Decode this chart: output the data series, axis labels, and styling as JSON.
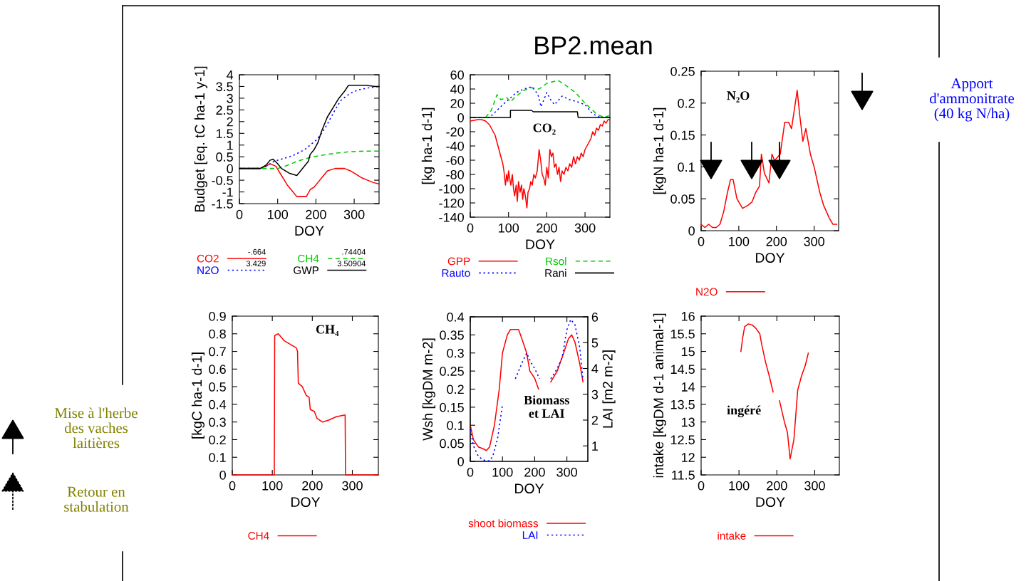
{
  "chart_data": [
    {
      "type": "line",
      "xlabel": "DOY",
      "ylabel": "Budget [eq. tC ha-1 y-1]",
      "xlim": [
        0,
        365
      ],
      "xticks": [
        0,
        100,
        200,
        300
      ],
      "ylim": [
        -1.5,
        4
      ],
      "yticks": [
        -1.5,
        -1,
        -0.5,
        0,
        0.5,
        1,
        1.5,
        2,
        2.5,
        3,
        3.5,
        4
      ],
      "legend": "bottom",
      "series": [
        {
          "name": "CO2",
          "color": "#ff0000",
          "line_style": "solid",
          "x": [
            0,
            30,
            55,
            70,
            80,
            95,
            110,
            125,
            140,
            150,
            160,
            175,
            185,
            195,
            205,
            215,
            230,
            250,
            275,
            290,
            300,
            320,
            335,
            350,
            365
          ],
          "values": [
            0,
            0,
            0,
            0.1,
            0.2,
            0.1,
            -0.3,
            -0.7,
            -1,
            -1.2,
            -1.2,
            -1.2,
            -0.9,
            -0.8,
            -0.6,
            -0.4,
            -0.1,
            0,
            0,
            -0.1,
            -0.2,
            -0.4,
            -0.5,
            -0.6,
            -0.66
          ]
        },
        {
          "name": "N2O",
          "color": "#0000ff",
          "line_style": "dotted",
          "x": [
            0,
            30,
            50,
            70,
            90,
            110,
            140,
            170,
            200,
            215,
            230,
            250,
            265,
            280,
            295,
            310,
            325,
            340,
            355,
            365
          ],
          "values": [
            0,
            0,
            0,
            0.1,
            0.3,
            0.4,
            0.55,
            0.8,
            1.2,
            1.5,
            1.9,
            2.5,
            2.9,
            3.1,
            3.25,
            3.35,
            3.4,
            3.45,
            3.48,
            3.5
          ]
        },
        {
          "name": "CH4",
          "color": "#00cc00",
          "line_style": "dashed",
          "x": [
            0,
            50,
            100,
            120,
            150,
            180,
            210,
            250,
            290,
            330,
            365
          ],
          "values": [
            0,
            0,
            0,
            0.1,
            0.3,
            0.45,
            0.55,
            0.65,
            0.72,
            0.74,
            0.74
          ]
        },
        {
          "name": "GWP",
          "color": "#000000",
          "line_style": "solid",
          "x": [
            0,
            55,
            70,
            80,
            88,
            100,
            110,
            130,
            150,
            160,
            170,
            180,
            185,
            195,
            205,
            215,
            230,
            245,
            260,
            275,
            285,
            300,
            330,
            355,
            365
          ],
          "values": [
            0,
            0,
            0.15,
            0.35,
            0.4,
            0.2,
            0,
            -0.2,
            -0.3,
            -0.1,
            0.1,
            0.3,
            0.6,
            0.8,
            1.1,
            1.6,
            2.2,
            2.6,
            3,
            3.3,
            3.55,
            3.55,
            3.55,
            3.5,
            3.5
          ]
        }
      ],
      "annotations": [
        "-.664",
        "3.429",
        ".74404",
        "3.50904"
      ]
    },
    {
      "type": "line",
      "title": "BP2.mean",
      "xlabel": "DOY",
      "ylabel": "[kg ha-1 d-1]",
      "xlim": [
        0,
        365
      ],
      "xticks": [
        0,
        100,
        200,
        300
      ],
      "ylim": [
        -140,
        60
      ],
      "yticks": [
        -140,
        -120,
        -100,
        -80,
        -60,
        -40,
        -20,
        0,
        20,
        40,
        60
      ],
      "legend": "bottom",
      "series": [
        {
          "name": "GPP",
          "color": "#ff0000",
          "line_style": "solid",
          "x": [
            0,
            10,
            20,
            30,
            40,
            50,
            60,
            65,
            70,
            75,
            80,
            85,
            88,
            92,
            95,
            98,
            100,
            103,
            106,
            110,
            113,
            116,
            120,
            123,
            126,
            130,
            134,
            137,
            140,
            144,
            148,
            151,
            155,
            158,
            162,
            166,
            170,
            175,
            180,
            184,
            188,
            192,
            196,
            200,
            204,
            208,
            212,
            216,
            220,
            224,
            228,
            232,
            236,
            240,
            245,
            250,
            255,
            260,
            265,
            270,
            275,
            280,
            285,
            290,
            295,
            300,
            305,
            310,
            315,
            320,
            325,
            330,
            335,
            340,
            345,
            350,
            355,
            360,
            365
          ],
          "values": [
            -5,
            -4,
            -3,
            -3,
            -5,
            -10,
            -20,
            -25,
            -35,
            -45,
            -55,
            -65,
            -75,
            -95,
            -80,
            -90,
            -75,
            -85,
            -95,
            -80,
            -100,
            -110,
            -95,
            -118,
            -90,
            -105,
            -95,
            -115,
            -100,
            -110,
            -127,
            -105,
            -100,
            -90,
            -95,
            -80,
            -85,
            -75,
            -45,
            -60,
            -80,
            -85,
            -95,
            -70,
            -85,
            -45,
            -55,
            -50,
            -70,
            -65,
            -80,
            -70,
            -90,
            -75,
            -80,
            -70,
            -75,
            -65,
            -70,
            -55,
            -65,
            -55,
            -60,
            -50,
            -55,
            -45,
            -40,
            -35,
            -30,
            -20,
            -25,
            -15,
            -18,
            -10,
            -12,
            -5,
            -8,
            -3,
            -3
          ]
        },
        {
          "name": "Rauto",
          "color": "#0000ff",
          "line_style": "dotted",
          "x": [
            0,
            50,
            70,
            85,
            100,
            120,
            140,
            160,
            170,
            178,
            185,
            200,
            210,
            220,
            240,
            260,
            280,
            300,
            320,
            340,
            365
          ],
          "values": [
            0,
            0,
            10,
            18,
            25,
            35,
            40,
            43,
            38,
            30,
            15,
            35,
            25,
            18,
            30,
            25,
            22,
            18,
            5,
            0,
            0
          ]
        },
        {
          "name": "Rsol",
          "color": "#00cc00",
          "line_style": "dashed",
          "x": [
            0,
            40,
            55,
            70,
            80,
            95,
            105,
            120,
            140,
            160,
            180,
            200,
            230,
            250,
            275,
            300,
            330,
            350,
            365
          ],
          "values": [
            0,
            0,
            10,
            32,
            25,
            28,
            22,
            30,
            38,
            42,
            40,
            48,
            52,
            45,
            35,
            20,
            5,
            0,
            3
          ]
        },
        {
          "name": "Rani",
          "color": "#000000",
          "line_style": "solid",
          "x": [
            0,
            105,
            105,
            160,
            165,
            280,
            282,
            365
          ],
          "values": [
            0,
            0,
            10,
            10,
            8,
            8,
            0,
            0
          ]
        }
      ],
      "annotations": [
        "CO₂"
      ]
    },
    {
      "type": "line",
      "xlabel": "DOY",
      "ylabel": "[kgN ha-1 d-1]",
      "xlim": [
        0,
        365
      ],
      "xticks": [
        0,
        100,
        200,
        300
      ],
      "ylim": [
        0,
        0.25
      ],
      "yticks": [
        0,
        0.05,
        0.1,
        0.15,
        0.2,
        0.25
      ],
      "legend": "bottom",
      "series": [
        {
          "name": "N2O",
          "color": "#ff0000",
          "line_style": "solid",
          "x": [
            0,
            10,
            20,
            30,
            40,
            50,
            60,
            70,
            78,
            85,
            95,
            110,
            125,
            135,
            145,
            155,
            160,
            168,
            180,
            188,
            195,
            210,
            222,
            232,
            240,
            250,
            255,
            262,
            270,
            278,
            290,
            300,
            315,
            325,
            340,
            350,
            360
          ],
          "values": [
            0.01,
            0.005,
            0.01,
            0.005,
            0.005,
            0.01,
            0.03,
            0.06,
            0.08,
            0.08,
            0.05,
            0.035,
            0.04,
            0.045,
            0.06,
            0.07,
            0.12,
            0.09,
            0.075,
            0.12,
            0.11,
            0.12,
            0.17,
            0.17,
            0.16,
            0.2,
            0.22,
            0.18,
            0.14,
            0.16,
            0.12,
            0.1,
            0.06,
            0.04,
            0.02,
            0.01,
            0.01
          ]
        }
      ],
      "annotations": [
        "N₂O",
        "Apport\nd'ammonitrate\n(40 kg N/ha)"
      ]
    },
    {
      "type": "line",
      "xlabel": "DOY",
      "ylabel": "[kgC ha-1 d-1]",
      "xlim": [
        0,
        365
      ],
      "xticks": [
        0,
        100,
        200,
        300
      ],
      "ylim": [
        0,
        0.9
      ],
      "yticks": [
        0,
        0.1,
        0.2,
        0.3,
        0.4,
        0.5,
        0.6,
        0.7,
        0.8,
        0.9
      ],
      "legend": "bottom",
      "series": [
        {
          "name": "CH4",
          "color": "#ff0000",
          "line_style": "solid",
          "x": [
            0,
            105,
            106,
            115,
            130,
            145,
            160,
            163,
            165,
            175,
            185,
            192,
            195,
            205,
            212,
            225,
            240,
            260,
            282,
            283,
            365
          ],
          "values": [
            0,
            0,
            0.79,
            0.8,
            0.76,
            0.74,
            0.72,
            0.7,
            0.52,
            0.5,
            0.45,
            0.44,
            0.37,
            0.36,
            0.32,
            0.3,
            0.31,
            0.33,
            0.34,
            0,
            0
          ]
        }
      ],
      "annotations": [
        "CH₄",
        "Mise à l'herbe\ndes vaches\nlaitières",
        "Retour en\nstabulation"
      ]
    },
    {
      "type": "line",
      "xlabel": "DOY",
      "ylabel": "Wsh [kgDM m-2]",
      "y2label": "LAI [m2 m-2]",
      "xlim": [
        0,
        365
      ],
      "xticks": [
        0,
        100,
        200,
        300
      ],
      "ylim": [
        0,
        0.4
      ],
      "yticks": [
        0,
        0.05,
        0.1,
        0.15,
        0.2,
        0.25,
        0.3,
        0.35,
        0.4
      ],
      "y2lim": [
        0.4,
        6
      ],
      "y2ticks": [
        1,
        2,
        3,
        4,
        5,
        6
      ],
      "legend": "bottom",
      "series": [
        {
          "name": "shoot biomass",
          "color": "#ff0000",
          "line_style": "solid",
          "x": [
            0,
            10,
            25,
            40,
            50,
            60,
            75,
            90,
            100,
            115,
            125,
            140,
            150,
            160,
            175,
            185,
            200,
            212,
            230,
            250,
            270,
            290,
            305,
            315,
            325,
            340,
            350
          ],
          "values": [
            0.1,
            0.06,
            0.04,
            0.035,
            0.03,
            0.04,
            0.1,
            0.2,
            0.3,
            0.35,
            0.365,
            0.365,
            0.365,
            0.34,
            0.3,
            0.25,
            0.23,
            0.2,
            null,
            0.22,
            0.25,
            0.3,
            0.34,
            0.35,
            0.33,
            0.27,
            0.22
          ]
        },
        {
          "name": "LAI",
          "color": "#0000ff",
          "line_style": "dotted",
          "axis": "y2",
          "x": [
            0,
            10,
            25,
            40,
            60,
            70,
            85,
            100,
            120,
            140,
            160,
            175,
            190,
            200,
            215,
            230,
            250,
            270,
            285,
            300,
            312,
            325,
            340,
            350
          ],
          "values": [
            1.64,
            1.0,
            0.6,
            0.45,
            0.42,
            0.6,
            1.3,
            2.6,
            null,
            3.6,
            4.2,
            4.6,
            4.2,
            4.0,
            3.6,
            null,
            3.6,
            4.0,
            4.4,
            5.5,
            5.9,
            5.7,
            4.8,
            3.6
          ]
        }
      ],
      "annotations": [
        "Biomass\net LAI"
      ]
    },
    {
      "type": "line",
      "xlabel": "DOY",
      "ylabel": "intake [kgDM d-1 animal-1]",
      "xlim": [
        0,
        365
      ],
      "xticks": [
        0,
        100,
        200,
        300
      ],
      "ylim": [
        11.5,
        16
      ],
      "yticks": [
        11.5,
        12,
        12.5,
        13,
        13.5,
        14,
        14.5,
        15,
        15.5,
        16
      ],
      "legend": "bottom",
      "series": [
        {
          "name": "intake",
          "color": "#ff0000",
          "line_style": "solid",
          "x": [
            105,
            110,
            115,
            125,
            135,
            145,
            155,
            160,
            170,
            180,
            190,
            198,
            207,
            220,
            228,
            235,
            245,
            255,
            265,
            275,
            283
          ],
          "values": [
            15.0,
            15.4,
            15.7,
            15.78,
            15.75,
            15.65,
            15.5,
            15.2,
            14.7,
            14.3,
            13.85,
            null,
            13.6,
            13.0,
            12.7,
            11.95,
            12.5,
            13.9,
            14.3,
            14.6,
            14.95
          ]
        }
      ],
      "annotations": [
        "ingéré"
      ]
    }
  ]
}
